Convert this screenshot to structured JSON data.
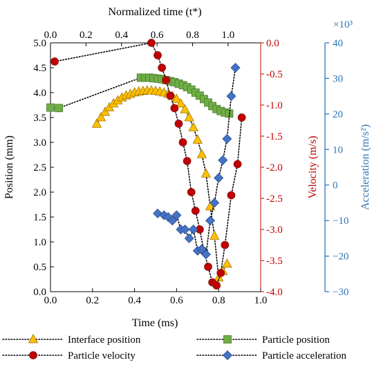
{
  "chart_data": {
    "type": "scatter",
    "colors": {
      "interface": "#FFC000",
      "particle_position": "#70AD47",
      "velocity": "#C00000",
      "acceleration": "#4472C4",
      "velocity_axis": "#C00000",
      "acceleration_axis": "#2E75B6"
    },
    "axes": {
      "x_bottom": {
        "label": "Time (ms)",
        "lim": [
          0.0,
          1.0
        ],
        "ticks": [
          "0.0",
          "0.2",
          "0.4",
          "0.6",
          "0.8",
          "1.0"
        ],
        "tick_values": [
          0.0,
          0.2,
          0.4,
          0.6,
          0.8,
          1.0
        ]
      },
      "x_top": {
        "label": "Normalized time (t*)",
        "lim": [
          0.0,
          1.1833
        ],
        "ticks": [
          "0.0",
          "0.2",
          "0.4",
          "0.6",
          "0.8",
          "1.0"
        ],
        "tick_values": [
          0.0,
          0.2,
          0.4,
          0.6,
          0.8,
          1.0
        ]
      },
      "y_left": {
        "label": "Position (mm)",
        "lim": [
          0.0,
          5.0
        ],
        "ticks": [
          "0.0",
          "0.5",
          "1.0",
          "1.5",
          "2.0",
          "2.5",
          "3.0",
          "3.5",
          "4.0",
          "4.5",
          "5.0"
        ],
        "tick_values": [
          0.0,
          0.5,
          1.0,
          1.5,
          2.0,
          2.5,
          3.0,
          3.5,
          4.0,
          4.5,
          5.0
        ]
      },
      "y_velocity": {
        "label": "Velocity (m/s)",
        "lim": [
          -4.0,
          0.0
        ],
        "ticks": [
          "0.0",
          "-0.5",
          "-1.0",
          "-1.5",
          "-2.0",
          "-2.5",
          "-3.0",
          "-3.5",
          "-4.0"
        ],
        "tick_values": [
          0.0,
          -0.5,
          -1.0,
          -1.5,
          -2.0,
          -2.5,
          -3.0,
          -3.5,
          -4.0
        ]
      },
      "y_acceleration": {
        "label": "Acceleration (m/s²)",
        "multiplier": "×10³",
        "lim": [
          -30,
          40
        ],
        "ticks": [
          "40",
          "30",
          "20",
          "10",
          "0",
          "−10",
          "−20",
          "−30"
        ],
        "tick_values": [
          40,
          30,
          20,
          10,
          0,
          -10,
          -20,
          -30
        ]
      }
    },
    "series": [
      {
        "name": "Interface position",
        "axis": "y_left",
        "marker": "triangle",
        "x": [
          0.22,
          0.24,
          0.26,
          0.28,
          0.3,
          0.32,
          0.34,
          0.36,
          0.38,
          0.4,
          0.42,
          0.44,
          0.46,
          0.48,
          0.5,
          0.52,
          0.54,
          0.56,
          0.58,
          0.6,
          0.62,
          0.64,
          0.66,
          0.68,
          0.7,
          0.72,
          0.74,
          0.76,
          0.78,
          0.8,
          0.82,
          0.84
        ],
        "y": [
          3.37,
          3.5,
          3.61,
          3.7,
          3.78,
          3.84,
          3.9,
          3.94,
          3.97,
          4.0,
          4.02,
          4.03,
          4.04,
          4.04,
          4.03,
          4.02,
          4.0,
          3.97,
          3.93,
          3.87,
          3.78,
          3.66,
          3.5,
          3.3,
          3.05,
          2.76,
          2.37,
          1.71,
          1.12,
          0.28,
          0.41,
          0.56
        ]
      },
      {
        "name": "Particle position",
        "axis": "y_left",
        "marker": "square",
        "x": [
          0.0,
          0.04,
          0.43,
          0.45,
          0.47,
          0.49,
          0.51,
          0.53,
          0.55,
          0.57,
          0.59,
          0.61,
          0.63,
          0.65,
          0.67,
          0.69,
          0.71,
          0.73,
          0.75,
          0.77,
          0.79,
          0.81,
          0.83,
          0.85
        ],
        "y": [
          3.7,
          3.69,
          4.3,
          4.3,
          4.3,
          4.29,
          4.28,
          4.27,
          4.25,
          4.23,
          4.21,
          4.18,
          4.15,
          4.11,
          4.06,
          4.0,
          3.94,
          3.87,
          3.8,
          3.73,
          3.67,
          3.63,
          3.6,
          3.58
        ]
      },
      {
        "name": "Particle velocity",
        "axis": "y_velocity",
        "marker": "circle",
        "x": [
          0.02,
          0.48,
          0.51,
          0.53,
          0.55,
          0.57,
          0.59,
          0.61,
          0.63,
          0.65,
          0.67,
          0.69,
          0.71,
          0.73,
          0.75,
          0.77,
          0.79,
          0.81,
          0.83,
          0.86,
          0.89,
          0.91
        ],
        "y": [
          -0.3,
          0.0,
          -0.2,
          -0.4,
          -0.6,
          -0.85,
          -1.05,
          -1.3,
          -1.6,
          -1.9,
          -2.4,
          -2.7,
          -3.0,
          -3.35,
          -3.6,
          -3.85,
          -3.9,
          -3.7,
          -3.25,
          -2.45,
          -1.95,
          -1.2
        ]
      },
      {
        "name": "Particle acceleration",
        "axis": "y_acceleration",
        "marker": "diamond",
        "x": [
          0.51,
          0.54,
          0.56,
          0.58,
          0.6,
          0.62,
          0.64,
          0.66,
          0.68,
          0.7,
          0.72,
          0.74,
          0.76,
          0.78,
          0.8,
          0.82,
          0.84,
          0.86,
          0.88
        ],
        "y": [
          -8.0,
          -8.5,
          -9.0,
          -10.0,
          -8.5,
          -12.5,
          -12.5,
          -15.0,
          -12.5,
          -18.5,
          -18.0,
          -19.5,
          -10.0,
          -5.0,
          2.0,
          7.0,
          13.0,
          25.0,
          33.0
        ]
      }
    ],
    "legend": {
      "placement": "bottom",
      "entries": [
        "Interface position",
        "Particle position",
        "Particle velocity",
        "Particle acceleration"
      ]
    },
    "grid": false
  }
}
